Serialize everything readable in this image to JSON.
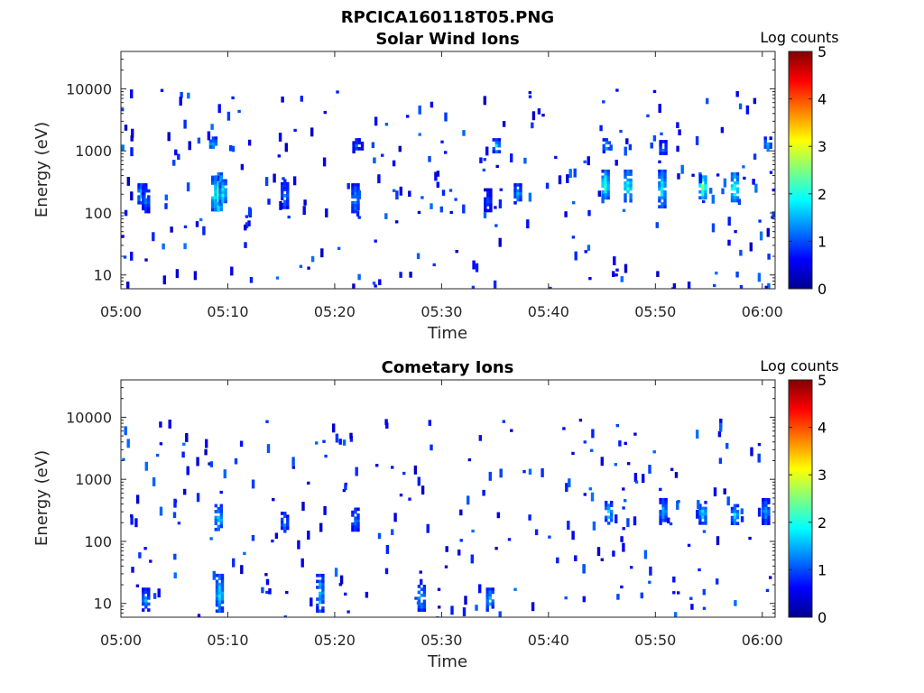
{
  "header": {
    "title": "RPCICA160118T05.PNG"
  },
  "chart_data": [
    {
      "type": "heatmap",
      "title": "Solar Wind Ions",
      "xlabel": "Time",
      "ylabel": "Energy (eV)",
      "x_ticks": [
        "05:00",
        "05:10",
        "05:20",
        "05:30",
        "05:40",
        "05:50",
        "06:00"
      ],
      "y_ticks": [
        "10",
        "100",
        "1000",
        "10000"
      ],
      "y_scale": "log",
      "ylim": [
        6,
        40000
      ],
      "xlim": [
        "05:00",
        "06:01"
      ],
      "colorbar": {
        "label": "Log counts",
        "ticks": [
          "0",
          "1",
          "2",
          "3",
          "4",
          "5"
        ],
        "range": [
          0,
          5
        ],
        "colormap": "jet"
      },
      "bursts": [
        {
          "t": 1.8,
          "e_lo": 150,
          "e_hi": 300,
          "v": 1.8
        },
        {
          "t": 2.2,
          "e_lo": 100,
          "e_hi": 300,
          "v": 1.3
        },
        {
          "t": 8.5,
          "e_lo": 1100,
          "e_hi": 1700,
          "v": 1.6
        },
        {
          "t": 8.7,
          "e_lo": 110,
          "e_hi": 400,
          "v": 2.2
        },
        {
          "t": 9.0,
          "e_lo": 110,
          "e_hi": 450,
          "v": 2.6
        },
        {
          "t": 9.4,
          "e_lo": 130,
          "e_hi": 350,
          "v": 2.0
        },
        {
          "t": 15.2,
          "e_lo": 120,
          "e_hi": 350,
          "v": 1.4
        },
        {
          "t": 21.8,
          "e_lo": 100,
          "e_hi": 300,
          "v": 1.5
        },
        {
          "t": 21.9,
          "e_lo": 1000,
          "e_hi": 1600,
          "v": 1.2
        },
        {
          "t": 34.2,
          "e_lo": 110,
          "e_hi": 250,
          "v": 1.0
        },
        {
          "t": 35.0,
          "e_lo": 1000,
          "e_hi": 1600,
          "v": 1.7
        },
        {
          "t": 37.0,
          "e_lo": 150,
          "e_hi": 300,
          "v": 1.5
        },
        {
          "t": 45.2,
          "e_lo": 170,
          "e_hi": 500,
          "v": 2.2
        },
        {
          "t": 45.3,
          "e_lo": 1000,
          "e_hi": 1600,
          "v": 1.6
        },
        {
          "t": 47.3,
          "e_lo": 150,
          "e_hi": 500,
          "v": 2.1
        },
        {
          "t": 50.5,
          "e_lo": 130,
          "e_hi": 500,
          "v": 2.0
        },
        {
          "t": 50.6,
          "e_lo": 900,
          "e_hi": 1500,
          "v": 1.4
        },
        {
          "t": 54.3,
          "e_lo": 180,
          "e_hi": 450,
          "v": 2.6
        },
        {
          "t": 57.3,
          "e_lo": 150,
          "e_hi": 450,
          "v": 2.3
        },
        {
          "t": 60.4,
          "e_lo": 1000,
          "e_hi": 1700,
          "v": 1.6
        }
      ]
    },
    {
      "type": "heatmap",
      "title": "Cometary Ions",
      "xlabel": "Time",
      "ylabel": "Energy (eV)",
      "x_ticks": [
        "05:00",
        "05:10",
        "05:20",
        "05:30",
        "05:40",
        "05:50",
        "06:00"
      ],
      "y_ticks": [
        "10",
        "100",
        "1000",
        "10000"
      ],
      "y_scale": "log",
      "ylim": [
        6,
        40000
      ],
      "xlim": [
        "05:00",
        "06:01"
      ],
      "colorbar": {
        "label": "Log counts",
        "ticks": [
          "0",
          "1",
          "2",
          "3",
          "4",
          "5"
        ],
        "range": [
          0,
          5
        ],
        "colormap": "jet"
      },
      "bursts": [
        {
          "t": 2.2,
          "e_lo": 8,
          "e_hi": 18,
          "v": 1.5
        },
        {
          "t": 9.0,
          "e_lo": 150,
          "e_hi": 400,
          "v": 1.9
        },
        {
          "t": 9.1,
          "e_lo": 8,
          "e_hi": 30,
          "v": 1.9
        },
        {
          "t": 15.2,
          "e_lo": 150,
          "e_hi": 300,
          "v": 1.4
        },
        {
          "t": 18.5,
          "e_lo": 8,
          "e_hi": 30,
          "v": 1.8
        },
        {
          "t": 21.8,
          "e_lo": 150,
          "e_hi": 350,
          "v": 1.4
        },
        {
          "t": 28.0,
          "e_lo": 8,
          "e_hi": 20,
          "v": 1.8
        },
        {
          "t": 34.4,
          "e_lo": 8,
          "e_hi": 18,
          "v": 1.7
        },
        {
          "t": 45.5,
          "e_lo": 200,
          "e_hi": 450,
          "v": 1.8
        },
        {
          "t": 50.6,
          "e_lo": 200,
          "e_hi": 500,
          "v": 1.6
        },
        {
          "t": 54.3,
          "e_lo": 200,
          "e_hi": 450,
          "v": 1.9
        },
        {
          "t": 57.3,
          "e_lo": 200,
          "e_hi": 400,
          "v": 1.8
        },
        {
          "t": 60.2,
          "e_lo": 200,
          "e_hi": 500,
          "v": 1.5
        }
      ]
    }
  ]
}
